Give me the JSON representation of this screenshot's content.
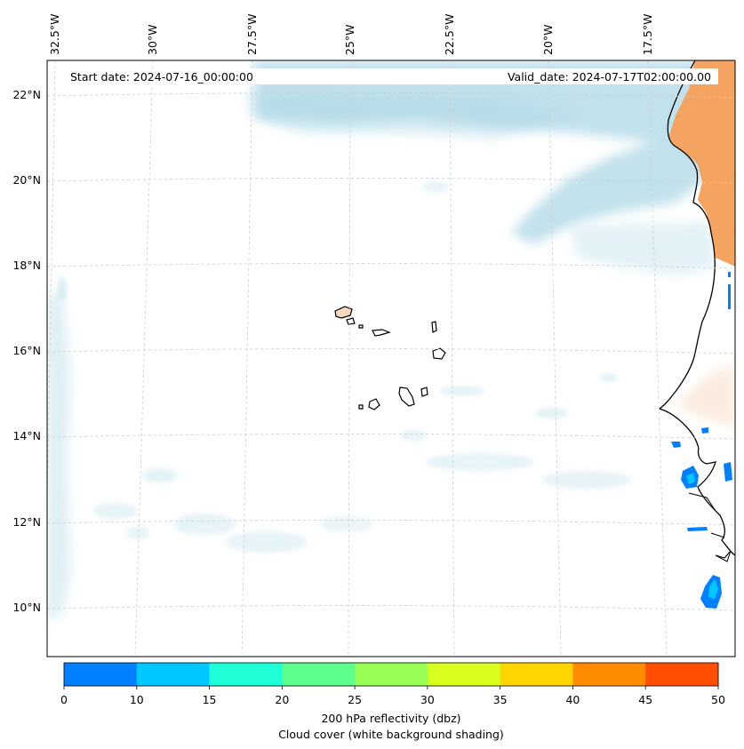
{
  "header": {
    "start_date": "Start date: 2024-07-16_00:00:00",
    "valid_date": "Valid_date: 2024-07-17T02:00:00.00"
  },
  "axes": {
    "lon_labels": [
      "32.5°W",
      "30°W",
      "27.5°W",
      "25°W",
      "22.5°W",
      "20°W",
      "17.5°W"
    ],
    "lat_labels": [
      "22°N",
      "20°N",
      "18°N",
      "16°N",
      "14°N",
      "12°N",
      "10°N"
    ]
  },
  "colorbar": {
    "ticks": [
      "0",
      "10",
      "15",
      "20",
      "25",
      "30",
      "35",
      "40",
      "45",
      "50"
    ],
    "colors": [
      "#0080ff",
      "#00c8ff",
      "#1effd7",
      "#5dff8f",
      "#98ff55",
      "#d8ff1d",
      "#ffd500",
      "#ff8c00",
      "#ff4e00"
    ],
    "label_line1": "200 hPa reflectivity (dbz)",
    "label_line2": "Cloud cover (white background shading)"
  },
  "colors": {
    "cloud": "#add8e6",
    "land_warm": "#f4a460",
    "coast": "#000000",
    "grid": "#cccccc"
  }
}
